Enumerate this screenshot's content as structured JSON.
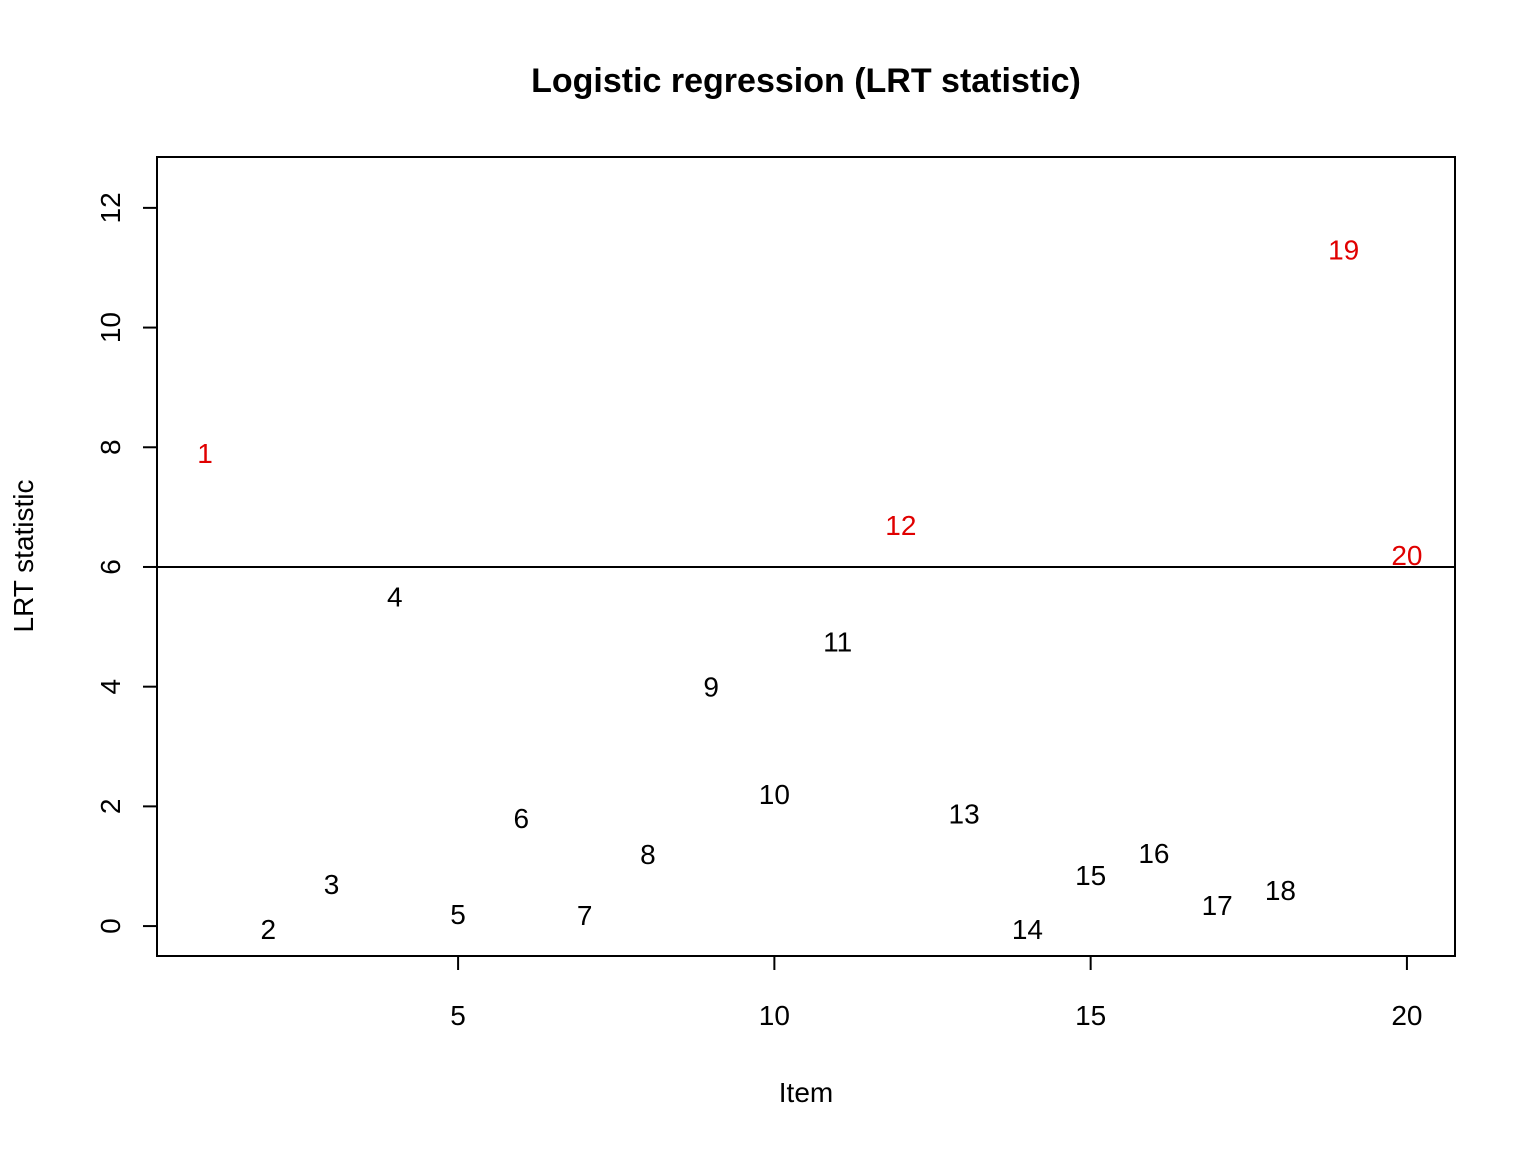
{
  "chart_data": {
    "type": "scatter",
    "title": "Logistic regression (LRT statistic)",
    "xlabel": "Item",
    "ylabel": "LRT statistic",
    "xlim": [
      0.24,
      20.76
    ],
    "ylim": [
      -0.5,
      12.85
    ],
    "x_ticks": [
      5,
      10,
      15,
      20
    ],
    "y_ticks": [
      0,
      2,
      4,
      6,
      8,
      10,
      12
    ],
    "threshold": 6.0,
    "grid": false,
    "colors": {
      "flagged": "#e00000",
      "normal": "#000000",
      "line": "#000000"
    },
    "points": [
      {
        "x": 1,
        "y": 7.9,
        "label": "1",
        "flagged": true
      },
      {
        "x": 2,
        "y": -0.05,
        "label": "2",
        "flagged": false
      },
      {
        "x": 3,
        "y": 0.7,
        "label": "3",
        "flagged": false
      },
      {
        "x": 4,
        "y": 5.5,
        "label": "4",
        "flagged": false
      },
      {
        "x": 5,
        "y": 0.2,
        "label": "5",
        "flagged": false
      },
      {
        "x": 6,
        "y": 1.8,
        "label": "6",
        "flagged": false
      },
      {
        "x": 7,
        "y": 0.18,
        "label": "7",
        "flagged": false
      },
      {
        "x": 8,
        "y": 1.2,
        "label": "8",
        "flagged": false
      },
      {
        "x": 9,
        "y": 4.0,
        "label": "9",
        "flagged": false
      },
      {
        "x": 10,
        "y": 2.2,
        "label": "10",
        "flagged": false
      },
      {
        "x": 11,
        "y": 4.75,
        "label": "11",
        "flagged": false
      },
      {
        "x": 12,
        "y": 6.7,
        "label": "12",
        "flagged": true
      },
      {
        "x": 13,
        "y": 1.88,
        "label": "13",
        "flagged": false
      },
      {
        "x": 14,
        "y": -0.05,
        "label": "14",
        "flagged": false
      },
      {
        "x": 15,
        "y": 0.85,
        "label": "15",
        "flagged": false
      },
      {
        "x": 16,
        "y": 1.22,
        "label": "16",
        "flagged": false
      },
      {
        "x": 17,
        "y": 0.35,
        "label": "17",
        "flagged": false
      },
      {
        "x": 18,
        "y": 0.6,
        "label": "18",
        "flagged": false
      },
      {
        "x": 19,
        "y": 11.3,
        "label": "19",
        "flagged": true
      },
      {
        "x": 20,
        "y": 6.2,
        "label": "20",
        "flagged": true
      }
    ]
  }
}
